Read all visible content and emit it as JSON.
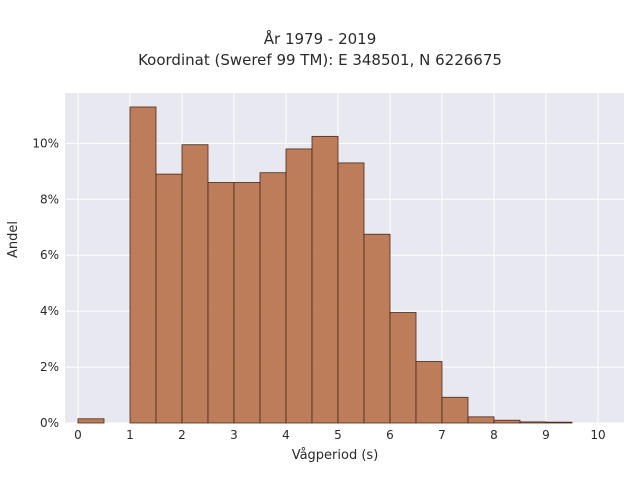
{
  "chart_data": {
    "type": "bar",
    "title": "År 1979 - 2019",
    "subtitle": "Koordinat (Sweref 99 TM): E 348501, N 6226675",
    "xlabel": "Vågperiod (s)",
    "ylabel": "Andel",
    "xlim": [
      -0.25,
      10.5
    ],
    "ylim": [
      0,
      11.8
    ],
    "xticks": [
      0,
      1,
      2,
      3,
      4,
      5,
      6,
      7,
      8,
      9,
      10
    ],
    "yticks": [
      0,
      2,
      4,
      6,
      8,
      10
    ],
    "ytick_labels": [
      "0%",
      "2%",
      "4%",
      "6%",
      "8%",
      "10%"
    ],
    "bin_width": 0.5,
    "bins": [
      {
        "start": 0.0,
        "value": 0.15
      },
      {
        "start": 0.5,
        "value": 0.0
      },
      {
        "start": 1.0,
        "value": 11.3
      },
      {
        "start": 1.5,
        "value": 8.9
      },
      {
        "start": 2.0,
        "value": 9.95
      },
      {
        "start": 2.5,
        "value": 8.6
      },
      {
        "start": 3.0,
        "value": 8.6
      },
      {
        "start": 3.5,
        "value": 8.95
      },
      {
        "start": 4.0,
        "value": 9.8
      },
      {
        "start": 4.5,
        "value": 10.25
      },
      {
        "start": 5.0,
        "value": 9.3
      },
      {
        "start": 5.5,
        "value": 6.75
      },
      {
        "start": 6.0,
        "value": 3.95
      },
      {
        "start": 6.5,
        "value": 2.2
      },
      {
        "start": 7.0,
        "value": 0.92
      },
      {
        "start": 7.5,
        "value": 0.22
      },
      {
        "start": 8.0,
        "value": 0.1
      },
      {
        "start": 8.5,
        "value": 0.04
      },
      {
        "start": 9.0,
        "value": 0.03
      },
      {
        "start": 9.5,
        "value": 0.0
      }
    ],
    "grid": true,
    "colors": {
      "bar_fill": "#bb7752",
      "bar_edge": "#4a2a18",
      "plot_bg": "#e8e8f0",
      "grid": "#ffffff"
    }
  }
}
